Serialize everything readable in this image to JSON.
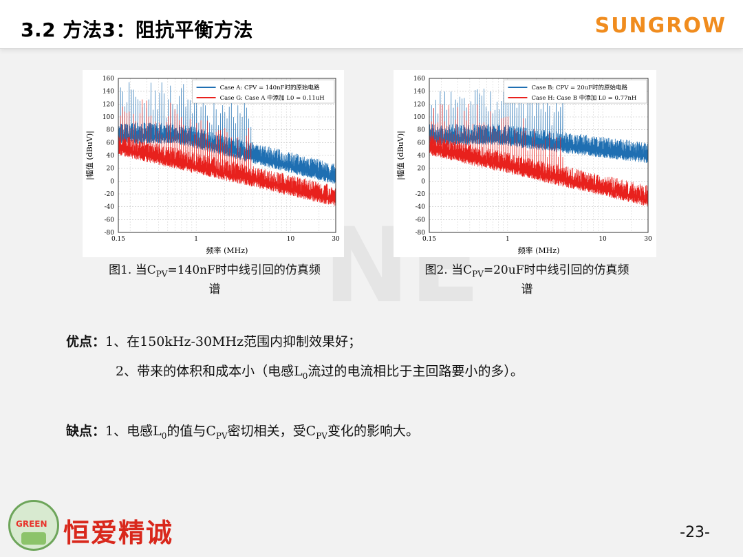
{
  "header": {
    "title": "3.2 方法3：阻抗平衡方法",
    "brand": "SUNGROW"
  },
  "figures": [
    {
      "caption_prefix": "图1. 当C",
      "caption_sub": "PV",
      "caption_suffix": "=140nF时中线引回的仿真频",
      "caption_line2": "谱",
      "chart_data": {
        "type": "line",
        "ylabel": "|幅值 (dBuV)|",
        "xlabel": "频率 (MHz)",
        "y_ticks": [
          "160",
          "140",
          "120",
          "100",
          "80",
          "60",
          "40",
          "20",
          "0",
          "-20",
          "-40",
          "-60",
          "-80"
        ],
        "x_ticks": [
          "0.15",
          "1",
          "10",
          "30"
        ],
        "ylim": [
          -80,
          160
        ],
        "xlim": [
          0.15,
          30
        ],
        "x_scale": "log",
        "grid": true,
        "legend_position": "top-right",
        "series": [
          {
            "name": "Case A: CPV = 140nF时的原始电路",
            "color": "#1f6fb2"
          },
          {
            "name": "Case G: Case A 中添加 L0 = 0.11uH",
            "color": "#e8211d"
          }
        ]
      }
    },
    {
      "caption_prefix": "图2. 当C",
      "caption_sub": "PV",
      "caption_suffix": "=20uF时中线引回的仿真频",
      "caption_line2": "谱",
      "chart_data": {
        "type": "line",
        "ylabel": "|幅值 (dBuV)|",
        "xlabel": "频率 (MHz)",
        "y_ticks": [
          "160",
          "140",
          "120",
          "100",
          "80",
          "60",
          "40",
          "20",
          "0",
          "-20",
          "-40",
          "-60",
          "-80"
        ],
        "x_ticks": [
          "0.15",
          "1",
          "10",
          "30"
        ],
        "ylim": [
          -80,
          160
        ],
        "xlim": [
          0.15,
          30
        ],
        "x_scale": "log",
        "grid": true,
        "legend_position": "top-right",
        "series": [
          {
            "name": "Case B: CPV = 20uF时的原始电路",
            "color": "#1f6fb2"
          },
          {
            "name": "Case H: Case B 中添加 L0 = 0.77nH",
            "color": "#e8211d"
          }
        ]
      }
    }
  ],
  "watermark": "NE",
  "body": {
    "adv_label": "优点：",
    "adv1": "1、在150kHz-30MHz范围内抑制效果好；",
    "adv2_pre": "2、带来的体积和成本小（电感L",
    "adv2_sub": "0",
    "adv2_post": "流过的电流相比于主回路要小的多）。",
    "dis_label": "缺点：",
    "dis1_a": "1、电感L",
    "dis1_sub1": "0",
    "dis1_b": "的值与C",
    "dis1_sub2": "PV",
    "dis1_c": "密切相关，受C",
    "dis1_sub3": "PV",
    "dis1_d": "变化的影响大。"
  },
  "footer": {
    "logo_text": "GREEN",
    "slogan": "恒爱精诚",
    "page": "-23-"
  }
}
